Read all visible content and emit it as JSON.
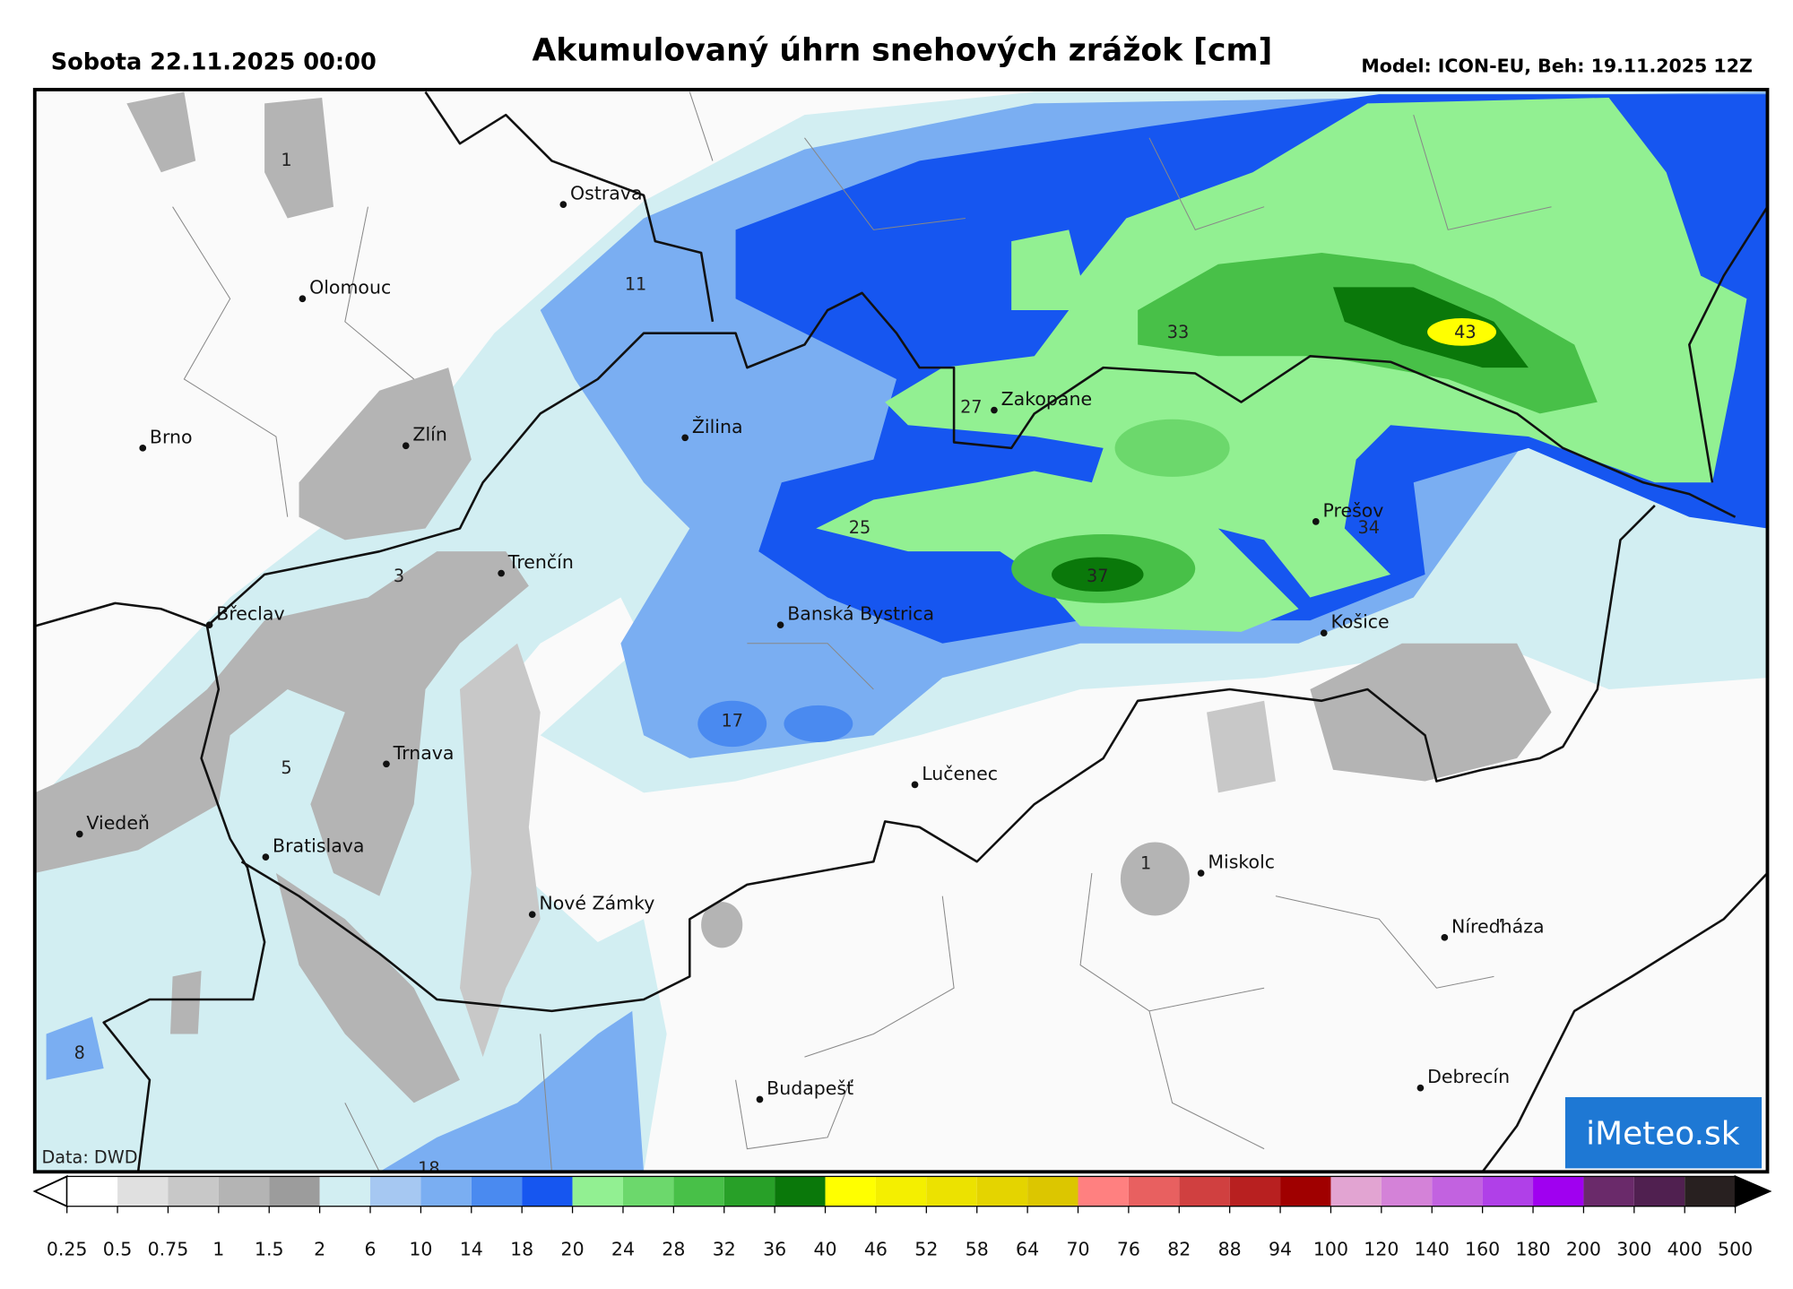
{
  "header": {
    "date": "Sobota 22.11.2025 00:00",
    "title": "Akumulovaný úhrn snehových zrážok [cm]",
    "model": "Model: ICON-EU, Beh: 19.11.2025 12Z"
  },
  "map": {
    "cities": [
      "Ostrava",
      "Olomouc",
      "Brno",
      "Zlín",
      "Žilina",
      "Zakopane",
      "Trenčín",
      "Břeclav",
      "Banská Bystrica",
      "Prešov",
      "Košice",
      "Trnava",
      "Viedeň",
      "Bratislava",
      "Lučenec",
      "Miskolc",
      "Nové Zámky",
      "Níreďháza",
      "Budapešť",
      "Debrecín"
    ],
    "value_labels": [
      1,
      11,
      33,
      43,
      27,
      25,
      37,
      34,
      17,
      5,
      3,
      1,
      8,
      18
    ],
    "source": "Data: DWD",
    "logo": "iMeteo.sk"
  },
  "colorbar": {
    "ticks": [
      0.25,
      0.5,
      0.75,
      1,
      1.5,
      2,
      6,
      10,
      14,
      18,
      20,
      24,
      28,
      32,
      36,
      40,
      46,
      52,
      58,
      64,
      70,
      76,
      82,
      88,
      94,
      100,
      120,
      140,
      160,
      180,
      200,
      300,
      400,
      500
    ],
    "colors": [
      "#ffffff",
      "#e0e0e0",
      "#c8c8c8",
      "#b4b4b4",
      "#9c9c9c",
      "#d2eef2",
      "#a6c8f2",
      "#7aaef2",
      "#4a8af0",
      "#1656f0",
      "#92f092",
      "#6cd86c",
      "#48c048",
      "#28a028",
      "#0a780a",
      "#ffff00",
      "#f4ef00",
      "#ece200",
      "#e4d400",
      "#dcc600",
      "#ff8080",
      "#e86060",
      "#d04040",
      "#b82020",
      "#a00000",
      "#e2a4d2",
      "#d482d8",
      "#c262e0",
      "#b040e8",
      "#a000f0",
      "#6a2a6a",
      "#502050",
      "#282020"
    ],
    "under_color": "#ffffff",
    "over_color": "#000000"
  }
}
